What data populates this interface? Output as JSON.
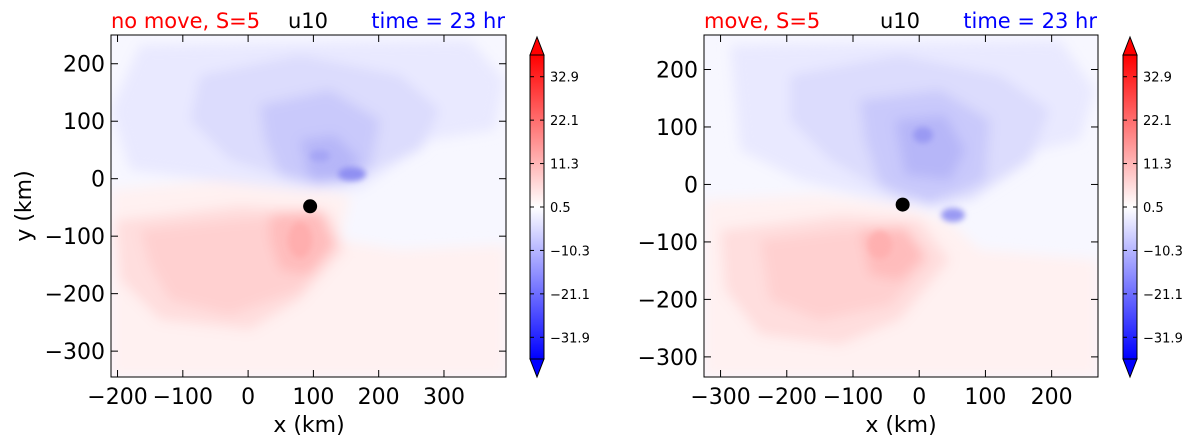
{
  "chart_data": [
    {
      "type": "heatmap",
      "variable": "u10",
      "title_left": "no move, S=5",
      "title_center": "u10",
      "title_right": "time = 23 hr",
      "xlabel": "x (km)",
      "ylabel": "y (km)",
      "xlim": [
        -210,
        395
      ],
      "ylim": [
        -345,
        250
      ],
      "xticks": [
        -200,
        -100,
        0,
        100,
        200,
        300
      ],
      "xtick_labels": [
        "−200",
        "−100",
        "0",
        "100",
        "200",
        "300"
      ],
      "yticks": [
        200,
        100,
        0,
        -100,
        -200,
        -300
      ],
      "ytick_labels": [
        "200",
        "100",
        "0",
        "−100",
        "−200",
        "−300"
      ],
      "center_marker": {
        "x": 95,
        "y": -48
      },
      "colorbar_ticks": [
        32.9,
        22.1,
        11.3,
        0.5,
        -10.3,
        -21.1,
        -31.9
      ],
      "colorbar_labels": [
        "32.9",
        "22.1",
        "11.3",
        "0.5",
        "−10.3",
        "−21.1",
        "−31.9"
      ],
      "colorbar_range": [
        -37.3,
        38.3
      ]
    },
    {
      "type": "heatmap",
      "variable": "u10",
      "title_left": "move, S=5",
      "title_center": "u10",
      "title_right": "time = 23 hr",
      "xlabel": "x (km)",
      "ylabel": "",
      "xlim": [
        -325,
        270
      ],
      "ylim": [
        -335,
        260
      ],
      "xticks": [
        -300,
        -200,
        -100,
        0,
        100,
        200
      ],
      "xtick_labels": [
        "−300",
        "−200",
        "−100",
        "0",
        "100",
        "200"
      ],
      "yticks": [
        200,
        100,
        0,
        -100,
        -200,
        -300
      ],
      "ytick_labels": [
        "200",
        "100",
        "0",
        "−100",
        "−200",
        "−300"
      ],
      "center_marker": {
        "x": -25,
        "y": -35
      },
      "colorbar_ticks": [
        32.9,
        22.1,
        11.3,
        0.5,
        -10.3,
        -21.1,
        -31.9
      ],
      "colorbar_labels": [
        "32.9",
        "22.1",
        "11.3",
        "0.5",
        "−10.3",
        "−21.1",
        "−31.9"
      ],
      "colorbar_range": [
        -37.3,
        38.3
      ]
    }
  ],
  "colors": {
    "title_left": "#ff0000",
    "title_center": "#000000",
    "title_right": "#0000ff"
  }
}
